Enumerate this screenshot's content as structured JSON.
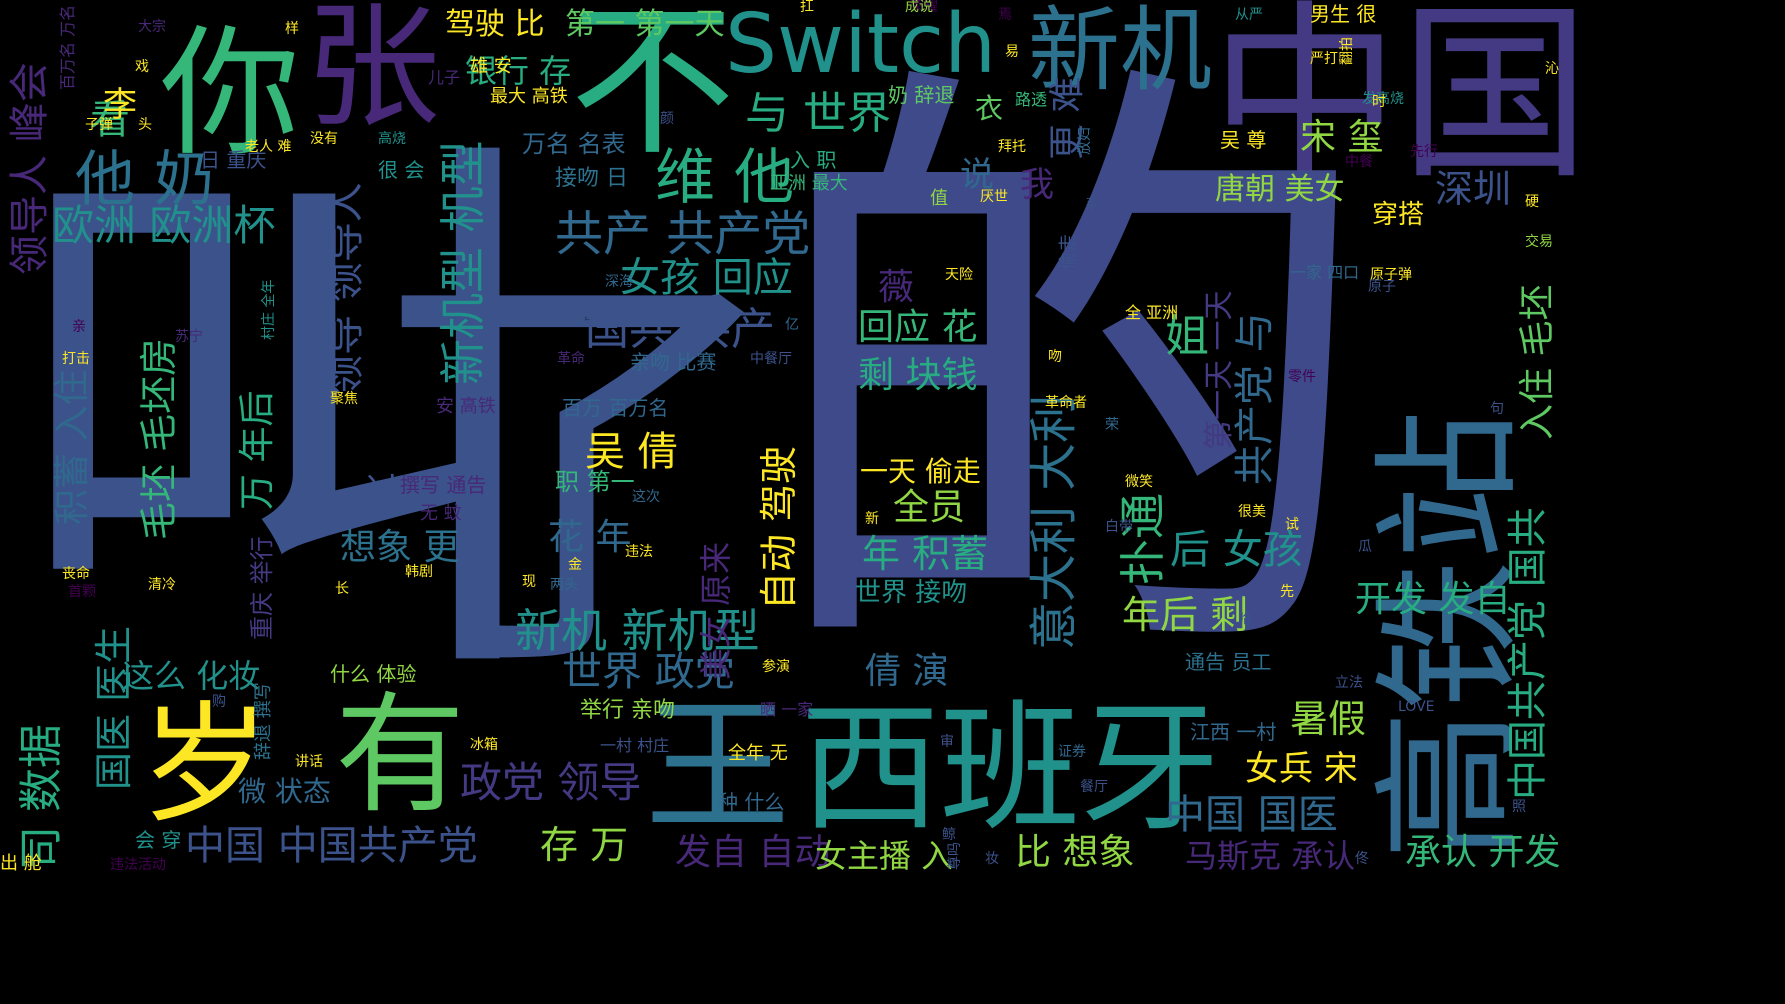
{
  "colors": {
    "background": "#000000",
    "palette": [
      "#3b528b",
      "#443983",
      "#31688e",
      "#21918c",
      "#35b779",
      "#90d743",
      "#fde725",
      "#482878",
      "#440154",
      "#2c728e",
      "#27ad81",
      "#5ec962",
      "#3e4a89"
    ]
  },
  "words": [
    {
      "text": "中国"
    },
    {
      "text": "的"
    },
    {
      "text": "了"
    },
    {
      "text": "叫"
    },
    {
      "text": "高铁站"
    },
    {
      "text": "Switch"
    },
    {
      "text": "不"
    },
    {
      "text": "你"
    },
    {
      "text": "张"
    },
    {
      "text": "新机"
    },
    {
      "text": "西班牙"
    },
    {
      "text": "王"
    },
    {
      "text": "有"
    },
    {
      "text": "岁"
    },
    {
      "text": "他 奶"
    },
    {
      "text": "维 他"
    },
    {
      "text": "与 世界"
    },
    {
      "text": "新机型 机型"
    },
    {
      "text": "欧洲 欧洲杯"
    },
    {
      "text": "共产 共产党"
    },
    {
      "text": "国共 共产"
    },
    {
      "text": "女孩 回应"
    },
    {
      "text": "意大利 大利"
    },
    {
      "text": "中国共产党 国共"
    },
    {
      "text": "新机 新机型"
    },
    {
      "text": "世界 政党"
    },
    {
      "text": "政党 领导"
    },
    {
      "text": "中国 中国共产党"
    },
    {
      "text": "存 万"
    },
    {
      "text": "比 想象"
    },
    {
      "text": "发自 自动"
    },
    {
      "text": "马斯克 承认"
    },
    {
      "text": "承认 开发"
    },
    {
      "text": "中国 国医"
    },
    {
      "text": "国医 医生"
    },
    {
      "text": "司 数据"
    },
    {
      "text": "唐朝 美女"
    },
    {
      "text": "深圳"
    },
    {
      "text": "驾驶 比"
    },
    {
      "text": "第一 第一天"
    },
    {
      "text": "银行 存"
    },
    {
      "text": "看"
    },
    {
      "text": "领导人 峰会"
    },
    {
      "text": "领导 领导人"
    },
    {
      "text": "毛坯 毛坯房"
    },
    {
      "text": "积蓄 入住"
    },
    {
      "text": "重庆 举行"
    },
    {
      "text": "万 年后"
    },
    {
      "text": "回应 花"
    },
    {
      "text": "剩 块钱"
    },
    {
      "text": "吴 倩"
    },
    {
      "text": "全员"
    },
    {
      "text": "年 积蓄"
    },
    {
      "text": "一天 偷走"
    },
    {
      "text": "花 年"
    },
    {
      "text": "想象 更"
    },
    {
      "text": "倩 演"
    },
    {
      "text": "这么 化妆"
    },
    {
      "text": "年后 剩"
    },
    {
      "text": "扑通"
    },
    {
      "text": "后 女孩"
    },
    {
      "text": "暑假"
    },
    {
      "text": "女兵 宋"
    },
    {
      "text": "开发 发自"
    },
    {
      "text": "入住 毛坯"
    },
    {
      "text": "宋 玺"
    },
    {
      "text": "更 难"
    },
    {
      "text": "自动 驾驶"
    },
    {
      "text": "美女 原来"
    },
    {
      "text": "女主播 入"
    },
    {
      "text": "穿搭"
    },
    {
      "text": "姐"
    },
    {
      "text": "共产党 与"
    },
    {
      "text": "第一天 一天"
    },
    {
      "text": "李"
    },
    {
      "text": "说"
    },
    {
      "text": "我"
    },
    {
      "text": "过"
    },
    {
      "text": "薇"
    },
    {
      "text": "微 状态"
    },
    {
      "text": "万名 名表"
    },
    {
      "text": "接吻 日"
    },
    {
      "text": "职 第一"
    },
    {
      "text": "撰写 通告"
    },
    {
      "text": "世界 接吻"
    },
    {
      "text": "通告 员工"
    },
    {
      "text": "江西 一村"
    },
    {
      "text": "什么 体验"
    },
    {
      "text": "举行 亲吻"
    },
    {
      "text": "国共 共产"
    },
    {
      "text": "亲吻 比赛"
    },
    {
      "text": "百万 百万名"
    },
    {
      "text": "入 职"
    },
    {
      "text": "日 重庆"
    },
    {
      "text": "最大 高铁"
    },
    {
      "text": "奶 辞退"
    },
    {
      "text": "吴 尊"
    },
    {
      "text": "男生 很"
    },
    {
      "text": "大宗"
    },
    {
      "text": "荣耀"
    },
    {
      "text": "成说"
    },
    {
      "text": "从严"
    },
    {
      "text": "雄 安"
    },
    {
      "text": "儿子"
    },
    {
      "text": "路透"
    },
    {
      "text": "高烧"
    },
    {
      "text": "发高烧"
    },
    {
      "text": "拜托"
    },
    {
      "text": "严打"
    },
    {
      "text": "没有"
    },
    {
      "text": "很 会"
    },
    {
      "text": "老人 难"
    },
    {
      "text": "子弹"
    },
    {
      "text": "颜"
    },
    {
      "text": "衣"
    },
    {
      "text": "值"
    },
    {
      "text": "亚洲 最大"
    },
    {
      "text": "先行"
    },
    {
      "text": "原子弹"
    },
    {
      "text": "原子"
    },
    {
      "text": "交易"
    },
    {
      "text": "天险"
    },
    {
      "text": "全 亚洲"
    },
    {
      "text": "深海"
    },
    {
      "text": "四口"
    },
    {
      "text": "中餐厅"
    },
    {
      "text": "一家 四口"
    },
    {
      "text": "革命"
    },
    {
      "text": "打击"
    },
    {
      "text": "聚焦"
    },
    {
      "text": "苏宁"
    },
    {
      "text": "安 高铁"
    },
    {
      "text": "革命者"
    },
    {
      "text": "零件"
    },
    {
      "text": "这次"
    },
    {
      "text": "无 蚊"
    },
    {
      "text": "微笑"
    },
    {
      "text": "违法"
    },
    {
      "text": "很美"
    },
    {
      "text": "白带"
    },
    {
      "text": "新"
    },
    {
      "text": "丧命"
    },
    {
      "text": "韩剧"
    },
    {
      "text": "清冷"
    },
    {
      "text": "首颗"
    },
    {
      "text": "两头"
    },
    {
      "text": "现"
    },
    {
      "text": "金"
    },
    {
      "text": "长"
    },
    {
      "text": "参演"
    },
    {
      "text": "晒 一家"
    },
    {
      "text": "立法"
    },
    {
      "text": "LOVE"
    },
    {
      "text": "购"
    },
    {
      "text": "辞退 撰写"
    },
    {
      "text": "讲话"
    },
    {
      "text": "冰箱"
    },
    {
      "text": "一村 村庄"
    },
    {
      "text": "全年 无"
    },
    {
      "text": "证券"
    },
    {
      "text": "餐厅"
    },
    {
      "text": "种 什么"
    },
    {
      "text": "会 穿"
    },
    {
      "text": "违法活动"
    },
    {
      "text": "出 舱"
    },
    {
      "text": "妆"
    },
    {
      "text": "鲸"
    },
    {
      "text": "尊吗"
    },
    {
      "text": "百万名 万名"
    },
    {
      "text": "村庄 全年"
    },
    {
      "text": "亲"
    },
    {
      "text": "审"
    },
    {
      "text": "照"
    },
    {
      "text": "瓜"
    },
    {
      "text": "试"
    },
    {
      "text": "先"
    },
    {
      "text": "哈"
    },
    {
      "text": "佟"
    },
    {
      "text": "硬"
    },
    {
      "text": "样"
    },
    {
      "text": "戏"
    },
    {
      "text": "头"
    },
    {
      "text": "扛"
    },
    {
      "text": "易"
    },
    {
      "text": "焉"
    },
    {
      "text": "吻"
    },
    {
      "text": "时"
    },
    {
      "text": "沁"
    },
    {
      "text": "翻拍"
    },
    {
      "text": "中餐"
    },
    {
      "text": "厌世"
    },
    {
      "text": "系"
    },
    {
      "text": "句"
    },
    {
      "text": "亿"
    },
    {
      "text": "村庄 全年"
    },
    {
      "text": "偷走"
    },
    {
      "text": "放妇"
    },
    {
      "text": "百万 荣"
    },
    {
      "text": "荣"
    },
    {
      "text": "美丽"
    },
    {
      "text": "美丽"
    },
    {
      "text": "出"
    }
  ]
}
